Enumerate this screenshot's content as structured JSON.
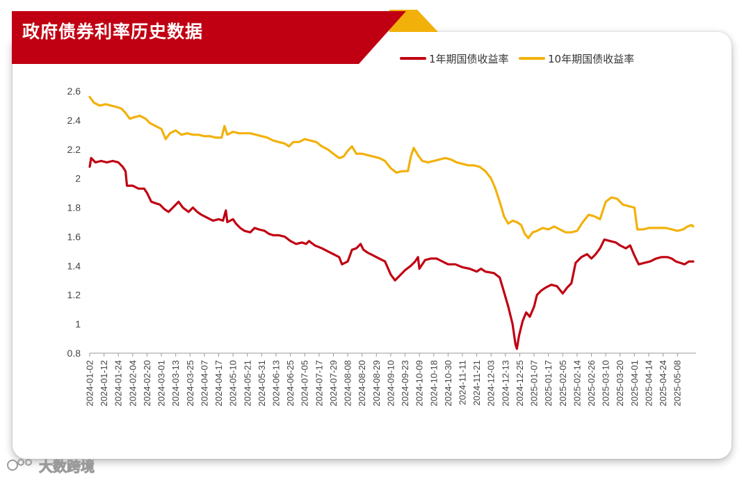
{
  "header": {
    "title": "政府债券利率历史数据"
  },
  "watermark": {
    "text": "大数跨境"
  },
  "colors": {
    "banner": "#c00012",
    "banner_accent": "#f2b10a",
    "series_1y": "#c00012",
    "series_10y": "#f2b10a",
    "axis_text": "#444444"
  },
  "chart_data": {
    "type": "line",
    "title": "政府债券利率历史数据",
    "xlabel": "",
    "ylabel": "",
    "ylim": [
      0.8,
      2.6
    ],
    "yticks": [
      "0.8",
      "1",
      "1.2",
      "1.4",
      "1.6",
      "1.8",
      "2",
      "2.2",
      "2.4",
      "2.6"
    ],
    "grid": false,
    "legend_position": "top-right",
    "x_tick_labels": [
      "2024-01-02",
      "2024-01-12",
      "2024-01-24",
      "2024-02-04",
      "2024-02-20",
      "2024-03-01",
      "2024-03-13",
      "2024-03-25",
      "2024-04-07",
      "2024-04-17",
      "2024-05-10",
      "2024-05-21",
      "2024-05-31",
      "2024-06-13",
      "2024-06-25",
      "2024-07-05",
      "2024-07-17",
      "2024-07-29",
      "2024-08-08",
      "2024-08-20",
      "2024-08-29",
      "2024-09-10",
      "2024-09-23",
      "2024-10-09",
      "2024-10-18",
      "2024-10-30",
      "2024-11-11",
      "2024-11-21",
      "2024-12-03",
      "2024-12-13",
      "2024-12-25",
      "2025-01-07",
      "2025-01-17",
      "2025-02-05",
      "2025-02-14",
      "2025-02-26",
      "2025-03-10",
      "2025-03-20",
      "2025-04-01",
      "2025-04-14",
      "2025-04-24",
      "2025-05-08"
    ],
    "x_extent": [
      0,
      42.3
    ],
    "series": [
      {
        "name": "1年期国债收益率",
        "color": "#c00012",
        "points": [
          [
            0,
            2.08
          ],
          [
            0.1,
            2.14
          ],
          [
            0.4,
            2.11
          ],
          [
            0.8,
            2.12
          ],
          [
            1.2,
            2.11
          ],
          [
            1.6,
            2.12
          ],
          [
            2,
            2.11
          ],
          [
            2.3,
            2.08
          ],
          [
            2.5,
            2.05
          ],
          [
            2.6,
            1.95
          ],
          [
            3,
            1.95
          ],
          [
            3.4,
            1.93
          ],
          [
            3.8,
            1.93
          ],
          [
            4,
            1.9
          ],
          [
            4.3,
            1.84
          ],
          [
            4.6,
            1.83
          ],
          [
            4.9,
            1.82
          ],
          [
            5.2,
            1.79
          ],
          [
            5.5,
            1.77
          ],
          [
            5.8,
            1.8
          ],
          [
            6.2,
            1.84
          ],
          [
            6.5,
            1.8
          ],
          [
            6.9,
            1.77
          ],
          [
            7.2,
            1.8
          ],
          [
            7.5,
            1.77
          ],
          [
            7.8,
            1.75
          ],
          [
            8.2,
            1.73
          ],
          [
            8.6,
            1.71
          ],
          [
            9,
            1.72
          ],
          [
            9.3,
            1.71
          ],
          [
            9.5,
            1.78
          ],
          [
            9.6,
            1.7
          ],
          [
            10,
            1.72
          ],
          [
            10.2,
            1.69
          ],
          [
            10.5,
            1.66
          ],
          [
            10.8,
            1.64
          ],
          [
            11.2,
            1.63
          ],
          [
            11.5,
            1.66
          ],
          [
            11.8,
            1.65
          ],
          [
            12.2,
            1.64
          ],
          [
            12.5,
            1.62
          ],
          [
            12.8,
            1.61
          ],
          [
            13.2,
            1.61
          ],
          [
            13.6,
            1.6
          ],
          [
            14,
            1.57
          ],
          [
            14.4,
            1.55
          ],
          [
            14.8,
            1.56
          ],
          [
            15.1,
            1.55
          ],
          [
            15.3,
            1.57
          ],
          [
            15.7,
            1.54
          ],
          [
            16.2,
            1.52
          ],
          [
            16.6,
            1.5
          ],
          [
            17,
            1.48
          ],
          [
            17.4,
            1.46
          ],
          [
            17.6,
            1.41
          ],
          [
            18,
            1.43
          ],
          [
            18.3,
            1.51
          ],
          [
            18.6,
            1.52
          ],
          [
            18.9,
            1.55
          ],
          [
            19.1,
            1.51
          ],
          [
            19.4,
            1.49
          ],
          [
            19.8,
            1.47
          ],
          [
            20.2,
            1.45
          ],
          [
            20.6,
            1.43
          ],
          [
            21,
            1.34
          ],
          [
            21.3,
            1.3
          ],
          [
            21.6,
            1.33
          ],
          [
            22,
            1.37
          ],
          [
            22.4,
            1.4
          ],
          [
            22.7,
            1.43
          ],
          [
            22.9,
            1.46
          ],
          [
            23,
            1.38
          ],
          [
            23.4,
            1.44
          ],
          [
            23.8,
            1.45
          ],
          [
            24.2,
            1.45
          ],
          [
            24.6,
            1.43
          ],
          [
            25,
            1.41
          ],
          [
            25.5,
            1.41
          ],
          [
            26,
            1.39
          ],
          [
            26.5,
            1.38
          ],
          [
            27,
            1.36
          ],
          [
            27.3,
            1.38
          ],
          [
            27.6,
            1.36
          ],
          [
            28.2,
            1.35
          ],
          [
            28.6,
            1.32
          ],
          [
            28.9,
            1.22
          ],
          [
            29.2,
            1.12
          ],
          [
            29.5,
            1.0
          ],
          [
            29.7,
            0.86
          ],
          [
            29.8,
            0.83
          ],
          [
            29.95,
            0.92
          ],
          [
            30.2,
            1.02
          ],
          [
            30.45,
            1.08
          ],
          [
            30.7,
            1.05
          ],
          [
            31,
            1.12
          ],
          [
            31.2,
            1.2
          ],
          [
            31.5,
            1.23
          ],
          [
            31.8,
            1.25
          ],
          [
            32.2,
            1.27
          ],
          [
            32.6,
            1.26
          ],
          [
            33,
            1.21
          ],
          [
            33.3,
            1.25
          ],
          [
            33.6,
            1.28
          ],
          [
            33.9,
            1.42
          ],
          [
            34.3,
            1.46
          ],
          [
            34.7,
            1.48
          ],
          [
            35,
            1.45
          ],
          [
            35.3,
            1.48
          ],
          [
            35.6,
            1.52
          ],
          [
            35.9,
            1.58
          ],
          [
            36.3,
            1.57
          ],
          [
            36.7,
            1.56
          ],
          [
            37,
            1.54
          ],
          [
            37.4,
            1.52
          ],
          [
            37.7,
            1.54
          ],
          [
            38,
            1.47
          ],
          [
            38.3,
            1.41
          ],
          [
            38.7,
            1.42
          ],
          [
            39.1,
            1.43
          ],
          [
            39.5,
            1.45
          ],
          [
            39.9,
            1.46
          ],
          [
            40.3,
            1.46
          ],
          [
            40.6,
            1.45
          ],
          [
            40.9,
            1.43
          ],
          [
            41.2,
            1.42
          ],
          [
            41.5,
            1.41
          ],
          [
            41.8,
            1.43
          ],
          [
            42.1,
            1.43
          ]
        ]
      },
      {
        "name": "10年期国债收益率",
        "color": "#f2b10a",
        "points": [
          [
            0,
            2.56
          ],
          [
            0.3,
            2.52
          ],
          [
            0.7,
            2.5
          ],
          [
            1.1,
            2.51
          ],
          [
            1.5,
            2.5
          ],
          [
            1.9,
            2.49
          ],
          [
            2.2,
            2.48
          ],
          [
            2.5,
            2.45
          ],
          [
            2.8,
            2.41
          ],
          [
            3.1,
            2.42
          ],
          [
            3.5,
            2.43
          ],
          [
            3.9,
            2.41
          ],
          [
            4.2,
            2.38
          ],
          [
            4.6,
            2.36
          ],
          [
            5,
            2.34
          ],
          [
            5.3,
            2.27
          ],
          [
            5.6,
            2.31
          ],
          [
            6,
            2.33
          ],
          [
            6.4,
            2.3
          ],
          [
            6.8,
            2.31
          ],
          [
            7.2,
            2.3
          ],
          [
            7.6,
            2.3
          ],
          [
            8,
            2.29
          ],
          [
            8.4,
            2.29
          ],
          [
            8.8,
            2.28
          ],
          [
            9.2,
            2.28
          ],
          [
            9.4,
            2.36
          ],
          [
            9.6,
            2.3
          ],
          [
            10,
            2.32
          ],
          [
            10.4,
            2.31
          ],
          [
            10.8,
            2.31
          ],
          [
            11.2,
            2.31
          ],
          [
            11.6,
            2.3
          ],
          [
            12,
            2.29
          ],
          [
            12.4,
            2.28
          ],
          [
            12.8,
            2.26
          ],
          [
            13.2,
            2.25
          ],
          [
            13.6,
            2.24
          ],
          [
            13.9,
            2.22
          ],
          [
            14.2,
            2.25
          ],
          [
            14.6,
            2.25
          ],
          [
            15,
            2.27
          ],
          [
            15.4,
            2.26
          ],
          [
            15.8,
            2.25
          ],
          [
            16.2,
            2.22
          ],
          [
            16.6,
            2.2
          ],
          [
            17,
            2.17
          ],
          [
            17.4,
            2.14
          ],
          [
            17.7,
            2.15
          ],
          [
            18,
            2.19
          ],
          [
            18.3,
            2.22
          ],
          [
            18.6,
            2.17
          ],
          [
            19,
            2.17
          ],
          [
            19.4,
            2.16
          ],
          [
            19.8,
            2.15
          ],
          [
            20.2,
            2.14
          ],
          [
            20.6,
            2.12
          ],
          [
            21,
            2.07
          ],
          [
            21.4,
            2.04
          ],
          [
            21.8,
            2.05
          ],
          [
            22.2,
            2.05
          ],
          [
            22.4,
            2.15
          ],
          [
            22.6,
            2.21
          ],
          [
            22.9,
            2.16
          ],
          [
            23.2,
            2.12
          ],
          [
            23.6,
            2.11
          ],
          [
            24,
            2.12
          ],
          [
            24.4,
            2.13
          ],
          [
            24.8,
            2.14
          ],
          [
            25.2,
            2.13
          ],
          [
            25.6,
            2.11
          ],
          [
            26,
            2.1
          ],
          [
            26.4,
            2.09
          ],
          [
            26.8,
            2.09
          ],
          [
            27.2,
            2.08
          ],
          [
            27.6,
            2.05
          ],
          [
            28,
            2.0
          ],
          [
            28.3,
            1.93
          ],
          [
            28.6,
            1.84
          ],
          [
            28.9,
            1.74
          ],
          [
            29.2,
            1.69
          ],
          [
            29.5,
            1.71
          ],
          [
            29.8,
            1.7
          ],
          [
            30.1,
            1.68
          ],
          [
            30.35,
            1.62
          ],
          [
            30.6,
            1.59
          ],
          [
            30.9,
            1.63
          ],
          [
            31.2,
            1.64
          ],
          [
            31.6,
            1.66
          ],
          [
            32,
            1.65
          ],
          [
            32.4,
            1.67
          ],
          [
            32.8,
            1.65
          ],
          [
            33.2,
            1.63
          ],
          [
            33.6,
            1.63
          ],
          [
            34,
            1.64
          ],
          [
            34.4,
            1.7
          ],
          [
            34.8,
            1.75
          ],
          [
            35.2,
            1.74
          ],
          [
            35.6,
            1.72
          ],
          [
            36,
            1.84
          ],
          [
            36.4,
            1.87
          ],
          [
            36.8,
            1.86
          ],
          [
            37.2,
            1.82
          ],
          [
            37.6,
            1.81
          ],
          [
            38,
            1.8
          ],
          [
            38.2,
            1.65
          ],
          [
            38.6,
            1.65
          ],
          [
            39,
            1.66
          ],
          [
            39.4,
            1.66
          ],
          [
            39.8,
            1.66
          ],
          [
            40.2,
            1.66
          ],
          [
            40.6,
            1.65
          ],
          [
            41,
            1.64
          ],
          [
            41.4,
            1.65
          ],
          [
            41.7,
            1.67
          ],
          [
            42,
            1.68
          ],
          [
            42.1,
            1.67
          ]
        ]
      }
    ]
  }
}
